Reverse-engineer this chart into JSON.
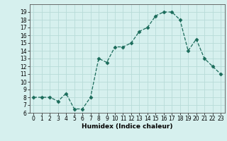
{
  "x": [
    0,
    1,
    2,
    3,
    4,
    5,
    6,
    7,
    8,
    9,
    10,
    11,
    12,
    13,
    14,
    15,
    16,
    17,
    18,
    19,
    20,
    21,
    22,
    23
  ],
  "y": [
    8,
    8,
    8,
    7.5,
    8.5,
    6.5,
    6.5,
    8,
    13,
    12.5,
    14.5,
    14.5,
    15,
    16.5,
    17,
    18.5,
    19,
    19,
    18,
    14,
    15.5,
    13,
    12,
    11
  ],
  "xlabel": "Humidex (Indice chaleur)",
  "xlim": [
    -0.5,
    23.5
  ],
  "ylim": [
    6,
    20
  ],
  "yticks": [
    6,
    7,
    8,
    9,
    10,
    11,
    12,
    13,
    14,
    15,
    16,
    17,
    18,
    19
  ],
  "xticks": [
    0,
    1,
    2,
    3,
    4,
    5,
    6,
    7,
    8,
    9,
    10,
    11,
    12,
    13,
    14,
    15,
    16,
    17,
    18,
    19,
    20,
    21,
    22,
    23
  ],
  "line_color": "#1a6b5a",
  "marker": "D",
  "marker_size": 2.5,
  "bg_color": "#d6f0ee",
  "grid_color": "#b8dbd8",
  "label_fontsize": 6.5,
  "tick_fontsize": 5.5
}
